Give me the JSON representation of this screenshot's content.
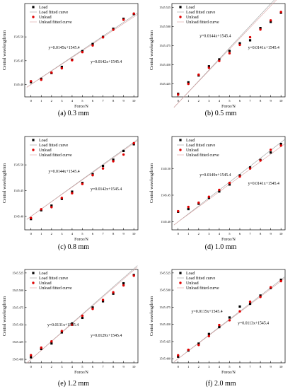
{
  "figure": {
    "panels": [
      {
        "caption": "(a) 0.3 mm"
      },
      {
        "caption": "(b) 0.5 mm"
      },
      {
        "caption": "(c) 0.8 mm"
      },
      {
        "caption": "(d) 1.0 mm"
      },
      {
        "caption": "(e) 1.2 mm"
      },
      {
        "caption": "(f) 2.0 mm"
      }
    ]
  },
  "colors": {
    "load": "#000000",
    "unload": "#e00000",
    "fit": "#9a9a9a",
    "frame": "#000000"
  },
  "chart_data": [
    {
      "type": "scatter",
      "title": "",
      "xlabel": "Force/N",
      "ylabel": "Central wavelength/nm",
      "xlim": [
        -0.6,
        10.4
      ],
      "ylim": [
        1545.374,
        1545.57
      ],
      "xticks": [
        "0",
        "1",
        "2",
        "3",
        "4",
        "5",
        "6",
        "7",
        "8",
        "9",
        "10"
      ],
      "yticks": [
        {
          "value": 1545.4,
          "label": "1545.40"
        },
        {
          "value": 1545.45,
          "label": "1545.45"
        },
        {
          "value": 1545.5,
          "label": "1545.50"
        }
      ],
      "legend": [
        "Load",
        "Load fitted curve",
        "Unload",
        "Unload fitted curve"
      ],
      "legend_position": "top-left",
      "annotations": [
        {
          "text": "y=0.0145x+1545.4",
          "x": 1.7,
          "y": 1545.475
        },
        {
          "text": "y=0.0142x+1545.4",
          "x": 5.8,
          "y": 1545.445
        }
      ],
      "x": [
        0,
        1,
        2,
        3,
        4,
        5,
        6,
        7,
        8,
        9,
        10
      ],
      "series": [
        {
          "name": "Load",
          "values": [
            1545.405,
            1545.412,
            1545.424,
            1545.437,
            1545.452,
            1545.47,
            1545.485,
            1545.5,
            1545.517,
            1545.538,
            1545.548
          ]
        },
        {
          "name": "Unload",
          "values": [
            1545.407,
            1545.41,
            1545.425,
            1545.434,
            1545.451,
            1545.468,
            1545.482,
            1545.499,
            1545.515,
            1545.536,
            1545.549
          ]
        }
      ],
      "fits": [
        {
          "name": "Load fitted curve",
          "slope": 0.0145,
          "intercept": 1545.4
        },
        {
          "name": "Unload fitted curve",
          "slope": 0.0142,
          "intercept": 1545.4
        }
      ]
    },
    {
      "type": "scatter",
      "title": "",
      "xlabel": "Force/N",
      "ylabel": "Central wavelength/nm",
      "xlim": [
        -0.6,
        10.4
      ],
      "ylim": [
        1545.408,
        1545.53
      ],
      "xticks": [
        "0",
        "1",
        "2",
        "3",
        "4",
        "5",
        "6",
        "7",
        "8",
        "9",
        "10"
      ],
      "yticks": [
        {
          "value": 1545.425,
          "label": "1545.425"
        },
        {
          "value": 1545.45,
          "label": "1545.450"
        },
        {
          "value": 1545.475,
          "label": "1545.475"
        },
        {
          "value": 1545.5,
          "label": "1545.500"
        },
        {
          "value": 1545.525,
          "label": "1545.525"
        }
      ],
      "legend": [
        "Load",
        "Load fitted curve",
        "Unload",
        "Unload fitted curve"
      ],
      "legend_position": "top-left",
      "annotations": [
        {
          "text": "y=0.0144x+1545.4",
          "x": 2.1,
          "y": 1545.486
        },
        {
          "text": "y=0.0141x+1545.4",
          "x": 6.8,
          "y": 1545.471
        }
      ],
      "x": [
        0,
        1,
        2,
        3,
        4,
        5,
        6,
        7,
        8,
        9,
        10
      ],
      "series": [
        {
          "name": "Load",
          "values": [
            1545.412,
            1545.427,
            1545.436,
            1545.448,
            1545.457,
            1545.468,
            1545.478,
            1545.482,
            1545.498,
            1545.506,
            1545.518
          ]
        },
        {
          "name": "Unload",
          "values": [
            1545.411,
            1545.425,
            1545.437,
            1545.446,
            1545.455,
            1545.465,
            1545.476,
            1545.486,
            1545.496,
            1545.508,
            1545.519
          ]
        }
      ],
      "fits": [
        {
          "name": "Load fitted curve",
          "slope": 0.0144,
          "intercept": 1545.4
        },
        {
          "name": "Unload fitted curve",
          "slope": 0.0141,
          "intercept": 1545.4
        }
      ]
    },
    {
      "type": "scatter",
      "title": "",
      "xlabel": "Force/N",
      "ylabel": "Central wavelength/nm",
      "xlim": [
        -0.6,
        10.4
      ],
      "ylim": [
        1545.374,
        1545.555
      ],
      "xticks": [
        "0",
        "1",
        "2",
        "3",
        "4",
        "5",
        "6",
        "7",
        "8",
        "9",
        "10"
      ],
      "yticks": [
        {
          "value": 1545.4,
          "label": "1545.40"
        },
        {
          "value": 1545.45,
          "label": "1545.45"
        },
        {
          "value": 1545.5,
          "label": "1545.50"
        }
      ],
      "legend": [
        "Load",
        "Load fitted curve",
        "Unload",
        "Unload fitted curve"
      ],
      "legend_position": "top-left",
      "annotations": [
        {
          "text": "y=0.0144x+1545.4",
          "x": 1.7,
          "y": 1545.485
        },
        {
          "text": "y=0.0142x+1545.4",
          "x": 5.8,
          "y": 1545.451
        }
      ],
      "x": [
        0,
        1,
        2,
        3,
        4,
        5,
        6,
        7,
        8,
        9,
        10
      ],
      "series": [
        {
          "name": "Load",
          "values": [
            1545.395,
            1545.412,
            1545.421,
            1545.434,
            1545.448,
            1545.465,
            1545.482,
            1545.498,
            1545.51,
            1545.527,
            1545.54
          ]
        },
        {
          "name": "Unload",
          "values": [
            1545.397,
            1545.414,
            1545.418,
            1545.436,
            1545.445,
            1545.463,
            1545.48,
            1545.493,
            1545.507,
            1545.52,
            1545.542
          ]
        }
      ],
      "fits": [
        {
          "name": "Load fitted curve",
          "slope": 0.0144,
          "intercept": 1545.4
        },
        {
          "name": "Unload fitted curve",
          "slope": 0.0142,
          "intercept": 1545.4
        }
      ]
    },
    {
      "type": "scatter",
      "title": "",
      "xlabel": "Force/N",
      "ylabel": "Central wavelength/nm",
      "xlim": [
        -0.6,
        10.4
      ],
      "ylim": [
        1545.385,
        1545.56
      ],
      "xticks": [
        "0",
        "1",
        "2",
        "3",
        "4",
        "5",
        "6",
        "7",
        "8",
        "9",
        "10"
      ],
      "yticks": [
        {
          "value": 1545.4,
          "label": "1545.40"
        },
        {
          "value": 1545.45,
          "label": "1545.45"
        },
        {
          "value": 1545.5,
          "label": "1545.50"
        }
      ],
      "legend": [
        "Load",
        "Load fitted curve",
        "Unload",
        "Unload fitted curve"
      ],
      "legend_position": "top-left",
      "annotations": [
        {
          "text": "y=0.0149x+1545.4",
          "x": 2.1,
          "y": 1545.486
        },
        {
          "text": "y=0.0141x+1545.4",
          "x": 6.8,
          "y": 1545.47
        }
      ],
      "x": [
        0,
        1,
        2,
        3,
        4,
        5,
        6,
        7,
        8,
        9,
        10
      ],
      "series": [
        {
          "name": "Load",
          "values": [
            1545.419,
            1545.424,
            1545.434,
            1545.445,
            1545.457,
            1545.47,
            1545.487,
            1545.502,
            1545.516,
            1545.53,
            1545.546
          ]
        },
        {
          "name": "Unload",
          "values": [
            1545.42,
            1545.428,
            1545.436,
            1545.447,
            1545.46,
            1545.473,
            1545.485,
            1545.5,
            1545.515,
            1545.535,
            1545.543
          ]
        }
      ],
      "fits": [
        {
          "name": "Load fitted curve",
          "slope": 0.0149,
          "intercept": 1545.4
        },
        {
          "name": "Unload fitted curve",
          "slope": 0.0141,
          "intercept": 1545.4
        }
      ]
    },
    {
      "type": "scatter",
      "title": "",
      "xlabel": "Force/N",
      "ylabel": "Central wavelength/nm",
      "xlim": [
        -0.6,
        10.4
      ],
      "ylim": [
        1545.395,
        1545.53
      ],
      "xticks": [
        "0",
        "1",
        "2",
        "3",
        "4",
        "5",
        "6",
        "7",
        "8",
        "9",
        "10"
      ],
      "yticks": [
        {
          "value": 1545.4,
          "label": "1545.400"
        },
        {
          "value": 1545.425,
          "label": "1545.425"
        },
        {
          "value": 1545.45,
          "label": "1545.450"
        },
        {
          "value": 1545.475,
          "label": "1545.475"
        },
        {
          "value": 1545.5,
          "label": "1545.500"
        },
        {
          "value": 1545.525,
          "label": "1545.525"
        }
      ],
      "legend": [
        "Load",
        "Load fitted curve",
        "Unload",
        "Unload fitted curve"
      ],
      "legend_position": "top-left",
      "annotations": [
        {
          "text": "y=0.0131x+1545.4",
          "x": 1.6,
          "y": 1545.448
        },
        {
          "text": "y=0.0129x+1545.4",
          "x": 5.8,
          "y": 1545.433
        }
      ],
      "x": [
        0,
        1,
        2,
        3,
        4,
        5,
        6,
        7,
        8,
        9,
        10
      ],
      "series": [
        {
          "name": "Load",
          "values": [
            1545.403,
            1545.415,
            1545.423,
            1545.439,
            1545.452,
            1545.46,
            1545.475,
            1545.484,
            1545.495,
            1545.51,
            1545.522
          ]
        },
        {
          "name": "Unload",
          "values": [
            1545.406,
            1545.417,
            1545.426,
            1545.441,
            1545.45,
            1545.463,
            1545.473,
            1545.486,
            1545.497,
            1545.507,
            1545.521
          ]
        }
      ],
      "fits": [
        {
          "name": "Load fitted curve",
          "slope": 0.0131,
          "intercept": 1545.4
        },
        {
          "name": "Unload fitted curve",
          "slope": 0.0129,
          "intercept": 1545.4
        }
      ]
    },
    {
      "type": "scatter",
      "title": "",
      "xlabel": "Force/N",
      "ylabel": "Central wavelength/nm",
      "xlim": [
        -0.6,
        10.4
      ],
      "ylim": [
        1545.394,
        1545.53
      ],
      "xticks": [
        "0",
        "1",
        "2",
        "3",
        "4",
        "5",
        "6",
        "7",
        "8",
        "9",
        "10"
      ],
      "yticks": [
        {
          "value": 1545.4,
          "label": "1545.400"
        },
        {
          "value": 1545.425,
          "label": "1545.425"
        },
        {
          "value": 1545.45,
          "label": "1545.450"
        },
        {
          "value": 1545.475,
          "label": "1545.475"
        },
        {
          "value": 1545.5,
          "label": "1545.500"
        },
        {
          "value": 1545.525,
          "label": "1545.525"
        }
      ],
      "legend": [
        "Load",
        "Load fitted curve",
        "Unload",
        "Unload fitted curve"
      ],
      "legend_position": "top-left",
      "annotations": [
        {
          "text": "y=0.0115x+1545.4",
          "x": 1.3,
          "y": 1545.467
        },
        {
          "text": "y=0.0113x+1545.4",
          "x": 5.8,
          "y": 1545.45
        }
      ],
      "x": [
        0,
        1,
        2,
        3,
        4,
        5,
        6,
        7,
        8,
        9,
        10
      ],
      "series": [
        {
          "name": "Load",
          "values": [
            1545.403,
            1545.412,
            1545.422,
            1545.436,
            1545.446,
            1545.46,
            1545.476,
            1545.48,
            1545.492,
            1545.503,
            1545.515
          ]
        },
        {
          "name": "Unload",
          "values": [
            1545.405,
            1545.413,
            1545.42,
            1545.433,
            1545.449,
            1545.456,
            1545.469,
            1545.483,
            1545.49,
            1545.504,
            1545.513
          ]
        }
      ],
      "fits": [
        {
          "name": "Load fitted curve",
          "slope": 0.0115,
          "intercept": 1545.4
        },
        {
          "name": "Unload fitted curve",
          "slope": 0.0113,
          "intercept": 1545.4
        }
      ]
    }
  ]
}
